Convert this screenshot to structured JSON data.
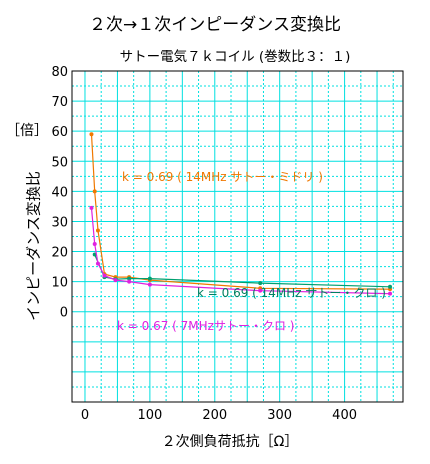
{
  "chart_data": {
    "type": "line",
    "title": "２次→１次インピーダンス変換比",
    "subtitle": "サトー電気７ｋコイル (巻数比３：１)",
    "xlabel": "２次側負荷抵抗［Ω］",
    "ylabel_unit": "［倍］",
    "ylabel": "インピーダンス変換比",
    "xlim": [
      -20,
      490
    ],
    "ylim": [
      -30,
      80
    ],
    "x_ticks": [
      0,
      100,
      200,
      300,
      400
    ],
    "x_tick_labels": [
      "0",
      "100",
      "200",
      "300",
      "400"
    ],
    "y_ticks": [
      0,
      10,
      20,
      30,
      40,
      50,
      60,
      70,
      80
    ],
    "y_tick_labels": [
      "0",
      "10",
      "20",
      "30",
      "40",
      "50",
      "60",
      "70",
      "80"
    ],
    "grid": true,
    "series": [
      {
        "name": "k = 0.69 ( 14MHz サトー・ミドリ )",
        "color": "#f07800",
        "points": [
          [
            10,
            59
          ],
          [
            15,
            40
          ],
          [
            20,
            27
          ],
          [
            30,
            12.5
          ],
          [
            47,
            11.5
          ],
          [
            68,
            11.5
          ],
          [
            100,
            10.5
          ],
          [
            270,
            7.8
          ],
          [
            470,
            7.5
          ]
        ]
      },
      {
        "name": "k = 0.69 ( 14MHz サトー・クロ )",
        "color": "#00a070",
        "points": [
          [
            15,
            19
          ],
          [
            30,
            11.5
          ],
          [
            47,
            10.8
          ],
          [
            68,
            11
          ],
          [
            100,
            11
          ],
          [
            270,
            9.5
          ],
          [
            470,
            8.3
          ]
        ]
      },
      {
        "name": "k = 0.67 ( 7MHzサトー・クロ )",
        "color": "#e020e0",
        "points": [
          [
            10,
            34.5
          ],
          [
            15,
            22.5
          ],
          [
            20,
            16
          ],
          [
            30,
            12
          ],
          [
            47,
            10.5
          ],
          [
            68,
            10
          ],
          [
            100,
            9
          ],
          [
            270,
            7
          ],
          [
            470,
            6
          ]
        ]
      }
    ],
    "annotations": [
      "k = 0.69 ( 14MHz サトー・ミドリ )",
      "k = 0.69 ( 14MHz サトー・クロ )",
      "k = 0.67 ( 7MHzサトー・クロ )"
    ]
  },
  "colors": {
    "major_grid": "#00e0e0",
    "minor_grid": "#00e0e0",
    "axis_frame": "#000000",
    "annotation_orange": "#f07800",
    "annotation_green": "#008060",
    "annotation_magenta": "#e020e0"
  }
}
